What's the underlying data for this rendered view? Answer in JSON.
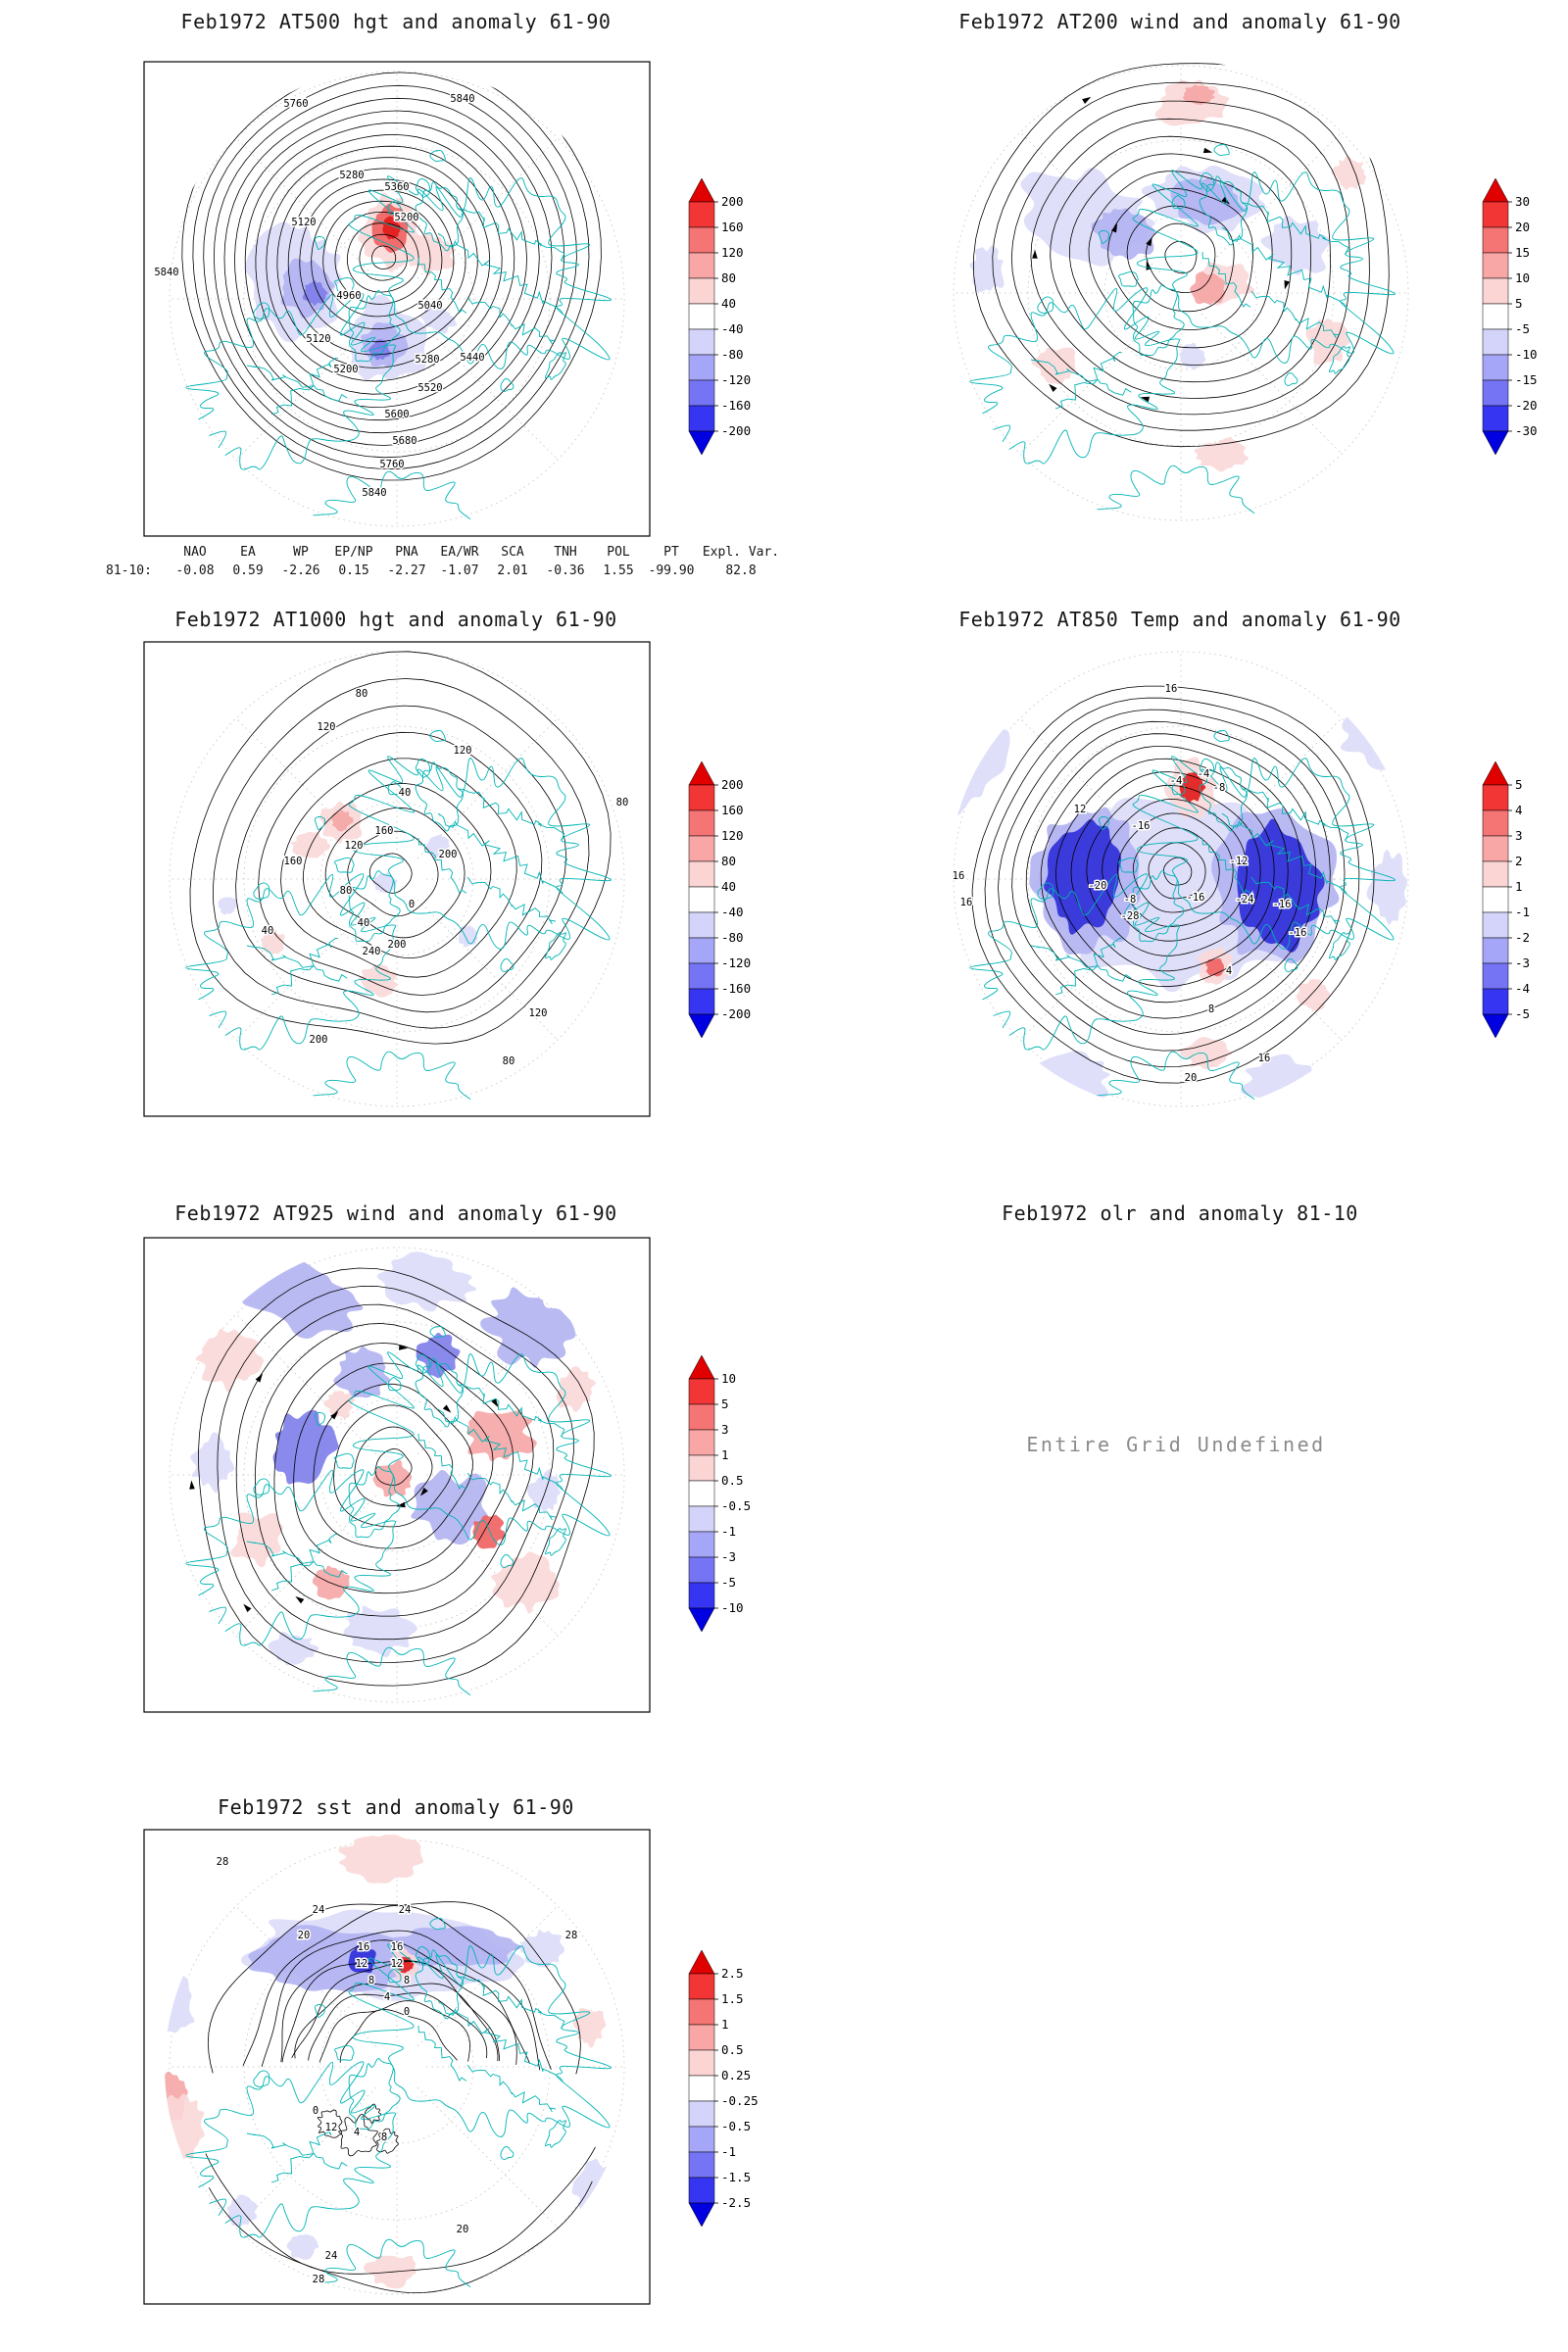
{
  "panels": [
    {
      "id": "at500",
      "title": "Feb1972 AT500 hgt and anomaly 61-90",
      "colorbar_labels": [
        "200",
        "160",
        "120",
        "80",
        "40",
        "-40",
        "-80",
        "-120",
        "-160",
        "-200"
      ],
      "contour_labels": [
        "5760",
        "5840",
        "5840",
        "5360",
        "5280",
        "5200",
        "5120",
        "5040",
        "4960",
        "5120",
        "5200",
        "5440",
        "5520",
        "5600",
        "5680",
        "5760",
        "5840",
        "5280"
      ]
    },
    {
      "id": "at200",
      "title": "Feb1972 AT200 wind and anomaly 61-90",
      "colorbar_labels": [
        "30",
        "20",
        "15",
        "10",
        "5",
        "-5",
        "-10",
        "-15",
        "-20",
        "-30"
      ],
      "contour_labels": []
    },
    {
      "id": "at1000",
      "title": "Feb1972 AT1000 hgt and anomaly 61-90",
      "colorbar_labels": [
        "200",
        "160",
        "120",
        "80",
        "40",
        "-40",
        "-80",
        "-120",
        "-160",
        "-200"
      ],
      "contour_labels": [
        "80",
        "120",
        "120",
        "40",
        "160",
        "200",
        "120",
        "160",
        "80",
        "40",
        "240",
        "200",
        "120",
        "80",
        "80",
        "40",
        "200",
        "0"
      ]
    },
    {
      "id": "at850",
      "title": "Feb1972 AT850 Temp and anomaly 61-90",
      "colorbar_labels": [
        "5",
        "4",
        "3",
        "2",
        "1",
        "-1",
        "-2",
        "-3",
        "-4",
        "-5"
      ],
      "contour_labels": [
        "16",
        "-4",
        "-8",
        "-4",
        "-16",
        "-16",
        "-8",
        "-20",
        "-24",
        "-28",
        "-12",
        "-16",
        "4",
        "8",
        "16",
        "20",
        "16",
        "16",
        "12",
        "-16"
      ]
    },
    {
      "id": "at925",
      "title": "Feb1972 AT925 wind and anomaly 61-90",
      "colorbar_labels": [
        "10",
        "5",
        "3",
        "1",
        "0.5",
        "-0.5",
        "-1",
        "-3",
        "-5",
        "-10"
      ],
      "contour_labels": []
    },
    {
      "id": "olr",
      "title": "Feb1972 olr and anomaly 81-10",
      "message": "Entire Grid Undefined"
    },
    {
      "id": "sst",
      "title": "Feb1972 sst and anomaly 61-90",
      "colorbar_labels": [
        "2.5",
        "1.5",
        "1",
        "0.5",
        "0.25",
        "-0.25",
        "-0.5",
        "-1",
        "-1.5",
        "-2.5"
      ],
      "contour_labels": [
        "28",
        "24",
        "24",
        "20",
        "16",
        "16",
        "12",
        "12",
        "8",
        "8",
        "4",
        "0",
        "28",
        "0",
        "12",
        "4",
        "8",
        "24",
        "28",
        "20"
      ]
    }
  ],
  "tele_table": {
    "row_label": "81-10:",
    "columns": [
      {
        "name": "NAO",
        "value": "-0.08"
      },
      {
        "name": "EA",
        "value": "0.59"
      },
      {
        "name": "WP",
        "value": "-2.26"
      },
      {
        "name": "EP/NP",
        "value": "0.15"
      },
      {
        "name": "PNA",
        "value": "-2.27"
      },
      {
        "name": "EA/WR",
        "value": "-1.07"
      },
      {
        "name": "SCA",
        "value": "2.01"
      },
      {
        "name": "TNH",
        "value": "-0.36"
      },
      {
        "name": "POL",
        "value": "1.55"
      },
      {
        "name": "PT",
        "value": "-99.90"
      }
    ],
    "expl_var_label": "Expl. Var.",
    "expl_var_value": "82.8"
  },
  "colors": {
    "coast": "#00b4b4",
    "contour": "#000000",
    "graticule": "#c0c0c0",
    "title_text": "#161616",
    "undefined_text": "#8a8a8a",
    "cb_top_arrow": "#e00000",
    "cb_bottom_arrow": "#0000e0",
    "cb_rects": [
      "#f23535",
      "#f57474",
      "#f8a6a6",
      "#fbd4d4",
      "#ffffff",
      "#d4d4fb",
      "#a6a6f8",
      "#7474f5",
      "#3535f2"
    ],
    "anom": {
      "r1": "#fbd8d8",
      "r2": "#f5a5a5",
      "r3": "#ee6060",
      "r4": "#e01818",
      "b1": "#dbdbfa",
      "b2": "#b2b2f2",
      "b3": "#7d7dea",
      "b4": "#2d2dd8"
    }
  },
  "chart_data": [
    {
      "type": "heatmap",
      "subtype": "north-polar-contour-map",
      "title": "Feb1972 AT500 hgt and anomaly 61-90",
      "colorbar_levels": [
        200,
        160,
        120,
        80,
        40,
        -40,
        -80,
        -120,
        -160,
        -200
      ],
      "visible_contour_values": [
        4960,
        5040,
        5120,
        5200,
        5280,
        5360,
        5440,
        5520,
        5600,
        5680,
        5760,
        5840
      ],
      "legend_position": "right",
      "shading": "red positive / blue negative anomalies"
    },
    {
      "type": "heatmap",
      "subtype": "north-polar-streamline-map",
      "title": "Feb1972 AT200 wind and anomaly 61-90",
      "colorbar_levels": [
        30,
        20,
        15,
        10,
        5,
        -5,
        -10,
        -15,
        -20,
        -30
      ],
      "legend_position": "right",
      "shading": "red positive / blue negative anomalies"
    },
    {
      "type": "heatmap",
      "subtype": "north-polar-contour-map",
      "title": "Feb1972 AT1000 hgt and anomaly 61-90",
      "colorbar_levels": [
        200,
        160,
        120,
        80,
        40,
        -40,
        -80,
        -120,
        -160,
        -200
      ],
      "visible_contour_values": [
        0,
        40,
        80,
        120,
        160,
        200,
        240
      ],
      "legend_position": "right",
      "shading": "red positive / blue negative anomalies"
    },
    {
      "type": "heatmap",
      "subtype": "north-polar-contour-map",
      "title": "Feb1972 AT850 Temp and anomaly 61-90",
      "colorbar_levels": [
        5,
        4,
        3,
        2,
        1,
        -1,
        -2,
        -3,
        -4,
        -5
      ],
      "visible_contour_values": [
        -28,
        -24,
        -20,
        -16,
        -12,
        -8,
        -4,
        4,
        8,
        12,
        16,
        20
      ],
      "legend_position": "right",
      "shading": "red positive / blue negative anomalies"
    },
    {
      "type": "heatmap",
      "subtype": "north-polar-streamline-map",
      "title": "Feb1972 AT925 wind and anomaly 61-90",
      "colorbar_levels": [
        10,
        5,
        3,
        1,
        0.5,
        -0.5,
        -1,
        -3,
        -5,
        -10
      ],
      "legend_position": "right",
      "shading": "red positive / blue negative anomalies"
    },
    {
      "type": "heatmap",
      "subtype": "north-polar-map",
      "title": "Feb1972 olr and anomaly 81-10",
      "status": "Entire Grid Undefined"
    },
    {
      "type": "heatmap",
      "subtype": "north-polar-contour-map",
      "title": "Feb1972 sst and anomaly 61-90",
      "colorbar_levels": [
        2.5,
        1.5,
        1,
        0.5,
        0.25,
        -0.25,
        -0.5,
        -1,
        -1.5,
        -2.5
      ],
      "visible_contour_values": [
        0,
        4,
        8,
        12,
        16,
        20,
        24,
        28
      ],
      "legend_position": "right",
      "shading": "red positive / blue negative anomalies"
    },
    {
      "type": "table",
      "title": "Teleconnection indices (81-10)",
      "columns": [
        "NAO",
        "EA",
        "WP",
        "EP/NP",
        "PNA",
        "EA/WR",
        "SCA",
        "TNH",
        "POL",
        "PT",
        "Expl. Var."
      ],
      "values": [
        -0.08,
        0.59,
        -2.26,
        0.15,
        -2.27,
        -1.07,
        2.01,
        -0.36,
        1.55,
        -99.9,
        82.8
      ]
    }
  ]
}
